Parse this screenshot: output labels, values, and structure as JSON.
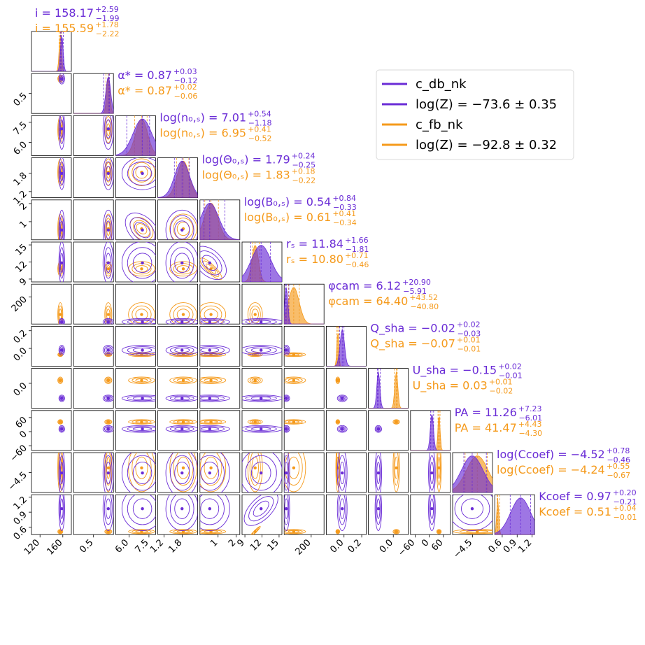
{
  "chart_data": {
    "type": "corner",
    "colors": {
      "c_db_nk": "#6a2cd6",
      "c_fb_nk": "#f59a1b"
    },
    "legend": {
      "position": "top-right",
      "entries": [
        {
          "label": "c_db_nk",
          "color": "#6a2cd6"
        },
        {
          "label": "log(Z) = −73.6 ± 0.35",
          "color": "#6a2cd6"
        },
        {
          "label": "c_fb_nk",
          "color": "#f59a1b"
        },
        {
          "label": "log(Z) = −92.8 ± 0.32",
          "color": "#f59a1b"
        }
      ]
    },
    "parameters": [
      {
        "name": "i",
        "ticks": [
          "120",
          "160"
        ],
        "range": [
          105,
          175
        ],
        "db": {
          "median": 158.17,
          "plus": 2.59,
          "minus": 1.99,
          "sd": 2.3
        },
        "fb": {
          "median": 155.59,
          "plus": 1.78,
          "minus": 2.22,
          "sd": 2.0
        },
        "label_db": "i = 158.17",
        "sup_db": "+2.59",
        "sub_db": "−1.99",
        "label_fb": "i = 155.59",
        "sup_fb": "+1.78",
        "sub_fb": "−2.22"
      },
      {
        "name": "alpha",
        "ticks": [
          "0.5"
        ],
        "range": [
          0.0,
          1.0
        ],
        "db": {
          "median": 0.87,
          "plus": 0.03,
          "minus": 0.12,
          "sd": 0.06
        },
        "fb": {
          "median": 0.87,
          "plus": 0.02,
          "minus": 0.06,
          "sd": 0.04
        },
        "label_db": "α* = 0.87",
        "sup_db": "+0.03",
        "sub_db": "−0.12",
        "label_fb": "α* = 0.87",
        "sup_fb": "+0.02",
        "sub_fb": "−0.06"
      },
      {
        "name": "log_n0s",
        "ticks": [
          "6.0",
          "7.5"
        ],
        "range": [
          5.0,
          8.0
        ],
        "db": {
          "median": 7.01,
          "plus": 0.54,
          "minus": 1.18,
          "sd": 0.7
        },
        "fb": {
          "median": 6.95,
          "plus": 0.41,
          "minus": 0.52,
          "sd": 0.45
        },
        "label_db": "log(n₀,ₛ) = 7.01",
        "sup_db": "+0.54",
        "sub_db": "−1.18",
        "label_fb": "log(n₀,ₛ) = 6.95",
        "sup_fb": "+0.41",
        "sub_fb": "−0.52"
      },
      {
        "name": "log_theta0s",
        "ticks": [
          "1.2",
          "1.8"
        ],
        "range": [
          1.0,
          2.3
        ],
        "db": {
          "median": 1.79,
          "plus": 0.24,
          "minus": 0.25,
          "sd": 0.24
        },
        "fb": {
          "median": 1.83,
          "plus": 0.18,
          "minus": 0.22,
          "sd": 0.2
        },
        "label_db": "log(Θ₀,ₛ) = 1.79",
        "sup_db": "+0.24",
        "sub_db": "−0.25",
        "label_fb": "log(Θ₀,ₛ) = 1.83",
        "sup_fb": "+0.18",
        "sub_fb": "−0.22"
      },
      {
        "name": "log_B0s",
        "ticks": [
          "1",
          "2"
        ],
        "range": [
          0.0,
          2.2
        ],
        "db": {
          "median": 0.54,
          "plus": 0.84,
          "minus": 0.33,
          "sd": 0.5
        },
        "fb": {
          "median": 0.61,
          "plus": 0.41,
          "minus": 0.34,
          "sd": 0.37
        },
        "label_db": "log(B₀,ₛ) = 0.54",
        "sup_db": "+0.84",
        "sub_db": "−0.33",
        "label_fb": "log(B₀,ₛ) = 0.61",
        "sup_fb": "+0.41",
        "sub_fb": "−0.34"
      },
      {
        "name": "r_s",
        "ticks": [
          "9",
          "12",
          "15"
        ],
        "range": [
          8.5,
          15.5
        ],
        "db": {
          "median": 11.84,
          "plus": 1.66,
          "minus": 1.81,
          "sd": 1.7
        },
        "fb": {
          "median": 10.8,
          "plus": 0.71,
          "minus": 0.46,
          "sd": 0.58
        },
        "label_db": "rₛ = 11.84",
        "sup_db": "+1.66",
        "sub_db": "−1.81",
        "label_fb": "rₛ = 10.80",
        "sup_fb": "+0.71",
        "sub_fb": "−0.46"
      },
      {
        "name": "phi_cam",
        "ticks": [
          "200"
        ],
        "range": [
          -10,
          300
        ],
        "db": {
          "median": 6.12,
          "plus": 20.9,
          "minus": 5.91,
          "sd": 12
        },
        "fb": {
          "median": 64.4,
          "plus": 43.52,
          "minus": 40.8,
          "sd": 42
        },
        "label_db": "φcam = 6.12",
        "sup_db": "+20.90",
        "sub_db": "−5.91",
        "label_fb": "φcam = 64.40",
        "sup_fb": "+43.52",
        "sub_fb": "−40.80"
      },
      {
        "name": "Q_sha",
        "ticks": [
          "0.0",
          "0.2"
        ],
        "range": [
          -0.2,
          0.25
        ],
        "db": {
          "median": -0.02,
          "plus": 0.02,
          "minus": 0.03,
          "sd": 0.025
        },
        "fb": {
          "median": -0.07,
          "plus": 0.01,
          "minus": 0.01,
          "sd": 0.01
        },
        "label_db": "Q_sha = −0.02",
        "sup_db": "+0.02",
        "sub_db": "−0.03",
        "label_fb": "Q_sha = −0.07",
        "sup_fb": "+0.01",
        "sub_fb": "−0.01"
      },
      {
        "name": "U_sha",
        "ticks": [
          "0.0"
        ],
        "range": [
          -0.25,
          0.15
        ],
        "db": {
          "median": -0.15,
          "plus": 0.02,
          "minus": 0.01,
          "sd": 0.015
        },
        "fb": {
          "median": 0.03,
          "plus": 0.01,
          "minus": 0.02,
          "sd": 0.015
        },
        "label_db": "U_sha = −0.15",
        "sup_db": "+0.02",
        "sub_db": "−0.01",
        "label_fb": "U_sha = 0.03",
        "sup_fb": "+0.01",
        "sub_fb": "−0.02"
      },
      {
        "name": "PA",
        "ticks": [
          "−60",
          "0",
          "60"
        ],
        "range": [
          -80,
          90
        ],
        "db": {
          "median": 11.26,
          "plus": 7.23,
          "minus": 6.01,
          "sd": 6.6
        },
        "fb": {
          "median": 41.47,
          "plus": 4.43,
          "minus": 4.3,
          "sd": 4.4
        },
        "label_db": "PA = 11.26",
        "sup_db": "+7.23",
        "sub_db": "−6.01",
        "label_fb": "PA = 41.47",
        "sup_fb": "+4.43",
        "sub_fb": "−4.30"
      },
      {
        "name": "log_Ccoef",
        "ticks": [
          "−4.5"
        ],
        "range": [
          -5.6,
          -3.4
        ],
        "db": {
          "median": -4.52,
          "plus": 0.78,
          "minus": 0.46,
          "sd": 0.6
        },
        "fb": {
          "median": -4.24,
          "plus": 0.55,
          "minus": 0.67,
          "sd": 0.6
        },
        "label_db": "log(Ccoef) = −4.52",
        "sup_db": "+0.78",
        "sub_db": "−0.46",
        "label_fb": "log(Ccoef) = −4.24",
        "sup_fb": "+0.55",
        "sub_fb": "−0.67"
      },
      {
        "name": "K_coef",
        "ticks": [
          "0.6",
          "0.9",
          "1.2"
        ],
        "range": [
          0.45,
          1.25
        ],
        "db": {
          "median": 0.97,
          "plus": 0.2,
          "minus": 0.21,
          "sd": 0.2
        },
        "fb": {
          "median": 0.51,
          "plus": 0.04,
          "minus": 0.01,
          "sd": 0.02
        },
        "label_db": "Kcoef = 0.97",
        "sup_db": "+0.20",
        "sub_db": "−0.21",
        "label_fb": "Kcoef = 0.51",
        "sup_fb": "+0.04",
        "sub_fb": "−0.01"
      }
    ]
  }
}
